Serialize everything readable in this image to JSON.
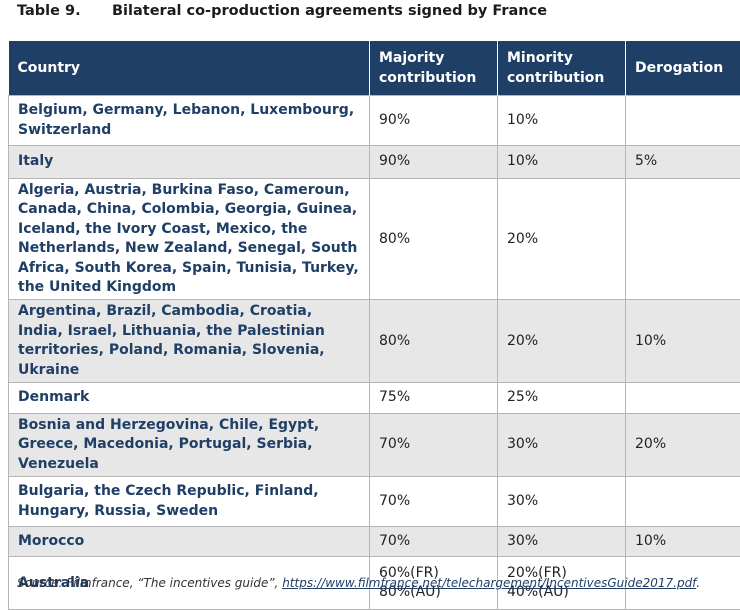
{
  "caption": {
    "number": "Table 9.",
    "title": "Bilateral co-production agreements signed by France"
  },
  "table": {
    "headers": [
      "Country",
      "Majority contribution",
      "Minority contribution",
      "Derogation"
    ],
    "rows": [
      {
        "country": "Belgium, Germany, Lebanon, Luxembourg, Switzerland",
        "majority": "90%",
        "minority": "10%",
        "derogation": ""
      },
      {
        "country": "Italy",
        "majority": "90%",
        "minority": "10%",
        "derogation": "5%"
      },
      {
        "country": "Algeria, Austria, Burkina Faso, Cameroun, Canada, China, Colombia, Georgia, Guinea, Iceland, the Ivory Coast, Mexico, the Netherlands, New Zealand, Senegal, South Africa, South Korea, Spain, Tunisia, Turkey, the United Kingdom",
        "majority": "80%",
        "minority": "20%",
        "derogation": ""
      },
      {
        "country": "Argentina, Brazil, Cambodia, Croatia, India, Israel, Lithuania, the Palestinian territories, Poland, Romania, Slovenia, Ukraine",
        "majority": "80%",
        "minority": "20%",
        "derogation": "10%"
      },
      {
        "country": "Denmark",
        "majority": "75%",
        "minority": "25%",
        "derogation": ""
      },
      {
        "country": "Bosnia and Herzegovina, Chile, Egypt, Greece, Macedonia, Portugal, Serbia, Venezuela",
        "majority": "70%",
        "minority": "30%",
        "derogation": "20%"
      },
      {
        "country": "Bulgaria, the Czech Republic, Finland, Hungary, Russia, Sweden",
        "majority": "70%",
        "minority": "30%",
        "derogation": ""
      },
      {
        "country": "Morocco",
        "majority": "70%",
        "minority": "30%",
        "derogation": "10%"
      },
      {
        "country": "Australia",
        "majority": [
          "60%(FR)",
          "80%(AU)"
        ],
        "minority": [
          "20%(FR)",
          "40%(AU)"
        ],
        "derogation": ""
      }
    ]
  },
  "source": {
    "prefix": "Source: Filmfrance, “The incentives guide”, ",
    "link": "https://www.filmfrance.net/telechargement/IncentivesGuide2017.pdf",
    "suffix": "."
  }
}
